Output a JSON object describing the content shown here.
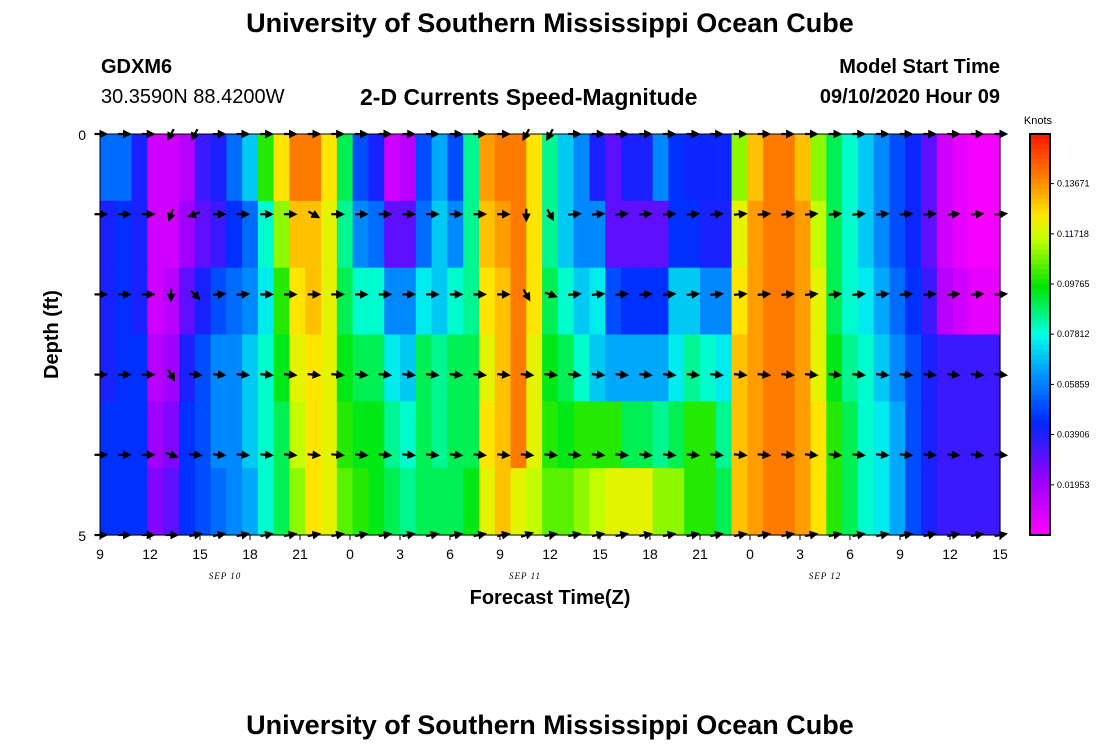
{
  "page": {
    "title": "University of Southern Mississippi Ocean Cube",
    "station_id": "GDXM6",
    "coordinates": "30.3590N 88.4200W",
    "subtitle": "2-D Currents Speed-Magnitude",
    "model_start_label": "Model Start Time",
    "model_start_value": "09/10/2020 Hour 09",
    "bottom_title": "University of Southern Mississippi Ocean Cube"
  },
  "chart_data": {
    "type": "heatmap",
    "title": "2-D Currents Speed-Magnitude",
    "xlabel": "Forecast Time(Z)",
    "ylabel": "Depth (ft)",
    "ylim": [
      0,
      5
    ],
    "y_tick_labels": [
      "0",
      "5"
    ],
    "x_tick_labels": [
      "9",
      "12",
      "15",
      "18",
      "21",
      "0",
      "3",
      "6",
      "9",
      "12",
      "15",
      "18",
      "21",
      "0",
      "3",
      "6",
      "9",
      "12",
      "15"
    ],
    "date_labels": [
      {
        "text": "SEP 10",
        "after_tick_index": 2
      },
      {
        "text": "SEP 11",
        "after_tick_index": 8
      },
      {
        "text": "SEP 12",
        "after_tick_index": 14
      }
    ],
    "forecast_hours_start": 9,
    "forecast_hours_end": 63,
    "colorbar": {
      "title": "Knots",
      "min": 0.0,
      "max": 0.156,
      "labels": [
        "0.13671",
        "0.11718",
        "0.09765",
        "0.07812",
        "0.05859",
        "0.03906",
        "0.01953"
      ]
    },
    "speed_knots": [
      [
        0.055,
        0.055,
        0.04,
        0.01,
        0.01,
        0.015,
        0.035,
        0.04,
        0.055,
        0.07,
        0.1,
        0.125,
        0.14,
        0.14,
        0.125,
        0.09,
        0.05,
        0.04,
        0.01,
        0.015,
        0.05,
        0.065,
        0.05,
        0.085,
        0.135,
        0.14,
        0.14,
        0.125,
        0.085,
        0.07,
        0.06,
        0.04,
        0.03,
        0.04,
        0.04,
        0.06,
        0.045,
        0.042,
        0.042,
        0.042,
        0.11,
        0.13,
        0.14,
        0.14,
        0.13,
        0.11,
        0.09,
        0.08,
        0.07,
        0.06,
        0.05,
        0.042,
        0.03,
        0.01,
        0.005,
        0.002,
        0.002
      ],
      [
        0.04,
        0.045,
        0.04,
        0.01,
        0.01,
        0.02,
        0.03,
        0.035,
        0.045,
        0.055,
        0.08,
        0.11,
        0.13,
        0.13,
        0.12,
        0.085,
        0.06,
        0.055,
        0.03,
        0.03,
        0.055,
        0.07,
        0.06,
        0.085,
        0.13,
        0.135,
        0.14,
        0.125,
        0.085,
        0.07,
        0.06,
        0.06,
        0.03,
        0.03,
        0.03,
        0.03,
        0.045,
        0.045,
        0.04,
        0.04,
        0.12,
        0.135,
        0.14,
        0.14,
        0.135,
        0.115,
        0.09,
        0.08,
        0.07,
        0.06,
        0.05,
        0.042,
        0.03,
        0.01,
        0.005,
        0.002,
        0.002
      ],
      [
        0.04,
        0.045,
        0.04,
        0.01,
        0.015,
        0.03,
        0.04,
        0.05,
        0.055,
        0.06,
        0.075,
        0.1,
        0.125,
        0.13,
        0.12,
        0.09,
        0.08,
        0.08,
        0.06,
        0.06,
        0.075,
        0.07,
        0.08,
        0.085,
        0.125,
        0.13,
        0.14,
        0.125,
        0.09,
        0.08,
        0.07,
        0.075,
        0.05,
        0.045,
        0.045,
        0.045,
        0.07,
        0.07,
        0.06,
        0.06,
        0.125,
        0.135,
        0.14,
        0.14,
        0.135,
        0.12,
        0.09,
        0.08,
        0.075,
        0.065,
        0.055,
        0.045,
        0.035,
        0.015,
        0.01,
        0.005,
        0.005
      ],
      [
        0.04,
        0.045,
        0.045,
        0.015,
        0.02,
        0.04,
        0.05,
        0.06,
        0.06,
        0.07,
        0.08,
        0.095,
        0.12,
        0.125,
        0.12,
        0.095,
        0.09,
        0.09,
        0.075,
        0.07,
        0.09,
        0.085,
        0.09,
        0.09,
        0.12,
        0.13,
        0.14,
        0.12,
        0.095,
        0.09,
        0.08,
        0.07,
        0.065,
        0.065,
        0.065,
        0.065,
        0.075,
        0.085,
        0.08,
        0.075,
        0.13,
        0.135,
        0.14,
        0.14,
        0.135,
        0.12,
        0.095,
        0.085,
        0.08,
        0.07,
        0.06,
        0.05,
        0.04,
        0.035,
        0.035,
        0.035,
        0.035
      ],
      [
        0.045,
        0.045,
        0.045,
        0.02,
        0.025,
        0.045,
        0.05,
        0.06,
        0.06,
        0.07,
        0.08,
        0.09,
        0.115,
        0.125,
        0.12,
        0.1,
        0.095,
        0.095,
        0.085,
        0.08,
        0.09,
        0.085,
        0.09,
        0.09,
        0.125,
        0.13,
        0.14,
        0.12,
        0.1,
        0.095,
        0.1,
        0.1,
        0.1,
        0.09,
        0.09,
        0.085,
        0.09,
        0.1,
        0.1,
        0.085,
        0.13,
        0.135,
        0.14,
        0.14,
        0.135,
        0.125,
        0.1,
        0.09,
        0.08,
        0.075,
        0.065,
        0.05,
        0.04,
        0.035,
        0.035,
        0.035,
        0.035
      ],
      [
        0.045,
        0.045,
        0.045,
        0.025,
        0.03,
        0.045,
        0.05,
        0.055,
        0.06,
        0.065,
        0.08,
        0.09,
        0.11,
        0.125,
        0.12,
        0.105,
        0.1,
        0.095,
        0.09,
        0.085,
        0.09,
        0.09,
        0.09,
        0.095,
        0.12,
        0.13,
        0.12,
        0.115,
        0.105,
        0.105,
        0.11,
        0.115,
        0.12,
        0.12,
        0.12,
        0.11,
        0.11,
        0.1,
        0.1,
        0.09,
        0.13,
        0.135,
        0.14,
        0.14,
        0.135,
        0.125,
        0.1,
        0.09,
        0.08,
        0.075,
        0.065,
        0.05,
        0.04,
        0.035,
        0.035,
        0.035,
        0.035
      ]
    ],
    "arrow_direction_deg": [
      [
        90,
        90,
        90,
        210,
        210,
        90,
        90,
        90,
        90,
        90,
        90,
        90,
        90,
        90,
        90,
        90,
        90,
        90,
        210,
        210,
        90,
        90,
        90,
        90,
        90,
        90,
        90,
        90,
        90,
        90,
        90,
        90,
        90,
        90,
        90,
        90,
        90,
        90,
        90
      ],
      [
        90,
        90,
        90,
        200,
        250,
        90,
        90,
        90,
        90,
        120,
        90,
        90,
        90,
        90,
        90,
        90,
        90,
        90,
        180,
        150,
        85,
        85,
        85,
        85,
        85,
        85,
        85,
        85,
        85,
        85,
        85,
        85,
        85,
        85,
        85,
        85,
        85,
        85,
        85
      ],
      [
        90,
        90,
        90,
        180,
        135,
        85,
        85,
        90,
        90,
        90,
        90,
        90,
        90,
        90,
        90,
        90,
        90,
        90,
        150,
        110,
        85,
        85,
        85,
        85,
        85,
        85,
        85,
        85,
        85,
        85,
        85,
        85,
        85,
        85,
        85,
        85,
        85,
        85,
        85
      ],
      [
        90,
        90,
        90,
        150,
        95,
        95,
        95,
        95,
        95,
        95,
        95,
        95,
        95,
        95,
        95,
        95,
        95,
        95,
        95,
        95,
        95,
        95,
        95,
        95,
        95,
        95,
        95,
        95,
        95,
        95,
        95,
        95,
        95,
        95,
        95,
        95,
        95,
        95,
        95
      ],
      [
        90,
        90,
        90,
        110,
        95,
        95,
        95,
        95,
        95,
        95,
        95,
        95,
        95,
        95,
        95,
        95,
        95,
        95,
        95,
        95,
        95,
        95,
        95,
        95,
        95,
        95,
        95,
        95,
        95,
        95,
        95,
        95,
        95,
        95,
        95,
        95,
        95,
        95,
        95
      ],
      [
        90,
        90,
        90,
        90,
        80,
        80,
        80,
        80,
        80,
        80,
        80,
        80,
        80,
        80,
        80,
        80,
        80,
        80,
        70,
        80,
        80,
        80,
        80,
        80,
        80,
        80,
        80,
        80,
        80,
        80,
        80,
        80,
        80,
        80,
        80,
        80,
        80,
        80,
        80
      ]
    ]
  }
}
